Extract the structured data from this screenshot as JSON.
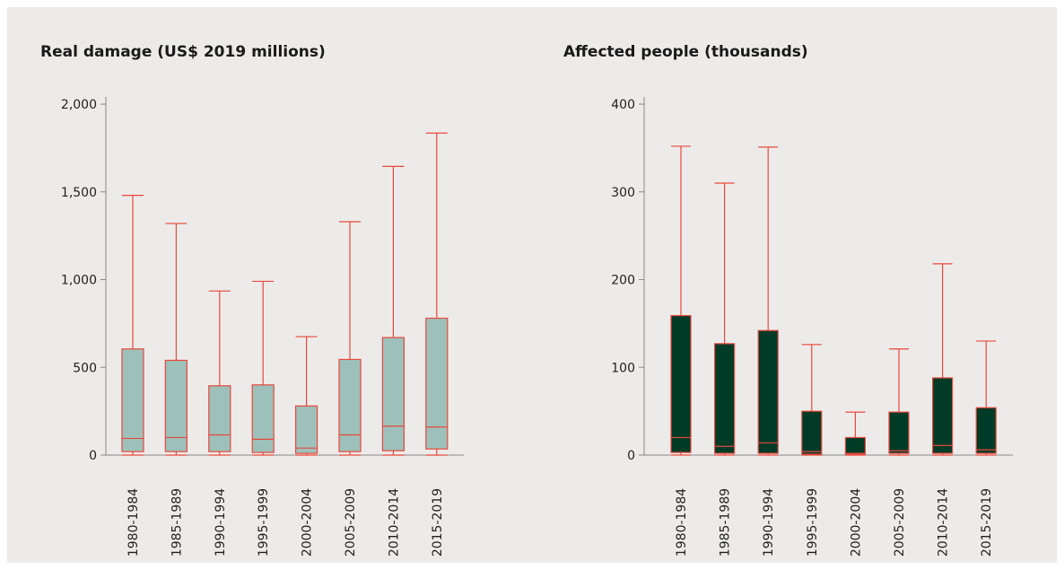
{
  "colors": {
    "background": "#edebe9",
    "whisker": "#e8483c",
    "box_left": "#9dc1ba",
    "box_right": "#003b28",
    "axis": "#888888"
  },
  "chart_data": [
    {
      "type": "box",
      "title": "Real damage (US$ 2019 millions)",
      "ylim": [
        0,
        2000
      ],
      "yticks": [
        0,
        500,
        1000,
        1500,
        2000
      ],
      "ytick_labels": [
        "0",
        "500",
        "1,000",
        "1,500",
        "2,000"
      ],
      "categories": [
        "1980-1984",
        "1985-1989",
        "1990-1994",
        "1995-1999",
        "2000-2004",
        "2005-2009",
        "2010-2014",
        "2015-2019"
      ],
      "min": [
        0,
        0,
        0,
        0,
        0,
        0,
        0,
        0
      ],
      "q1": [
        20,
        20,
        20,
        15,
        10,
        20,
        25,
        35
      ],
      "median": [
        95,
        100,
        115,
        90,
        40,
        115,
        165,
        160
      ],
      "q3": [
        605,
        540,
        395,
        400,
        280,
        545,
        670,
        780
      ],
      "max": [
        1480,
        1320,
        935,
        990,
        675,
        1330,
        1645,
        1835
      ]
    },
    {
      "type": "box",
      "title": "Affected people (thousands)",
      "ylim": [
        0,
        400
      ],
      "yticks": [
        0,
        100,
        200,
        300,
        400
      ],
      "ytick_labels": [
        "0",
        "100",
        "200",
        "300",
        "400"
      ],
      "categories": [
        "1980-1984",
        "1985-1989",
        "1990-1994",
        "1995-1999",
        "2000-2004",
        "2005-2009",
        "2010-2014",
        "2015-2019"
      ],
      "min": [
        0,
        0,
        0,
        0,
        0,
        0,
        0,
        0
      ],
      "q1": [
        3,
        2,
        2,
        1,
        1,
        2,
        2,
        2
      ],
      "median": [
        20,
        10,
        14,
        4,
        2,
        5,
        11,
        6
      ],
      "q3": [
        159,
        127,
        142,
        50,
        20,
        49,
        88,
        54
      ],
      "max": [
        352,
        310,
        351,
        126,
        49,
        121,
        218,
        130
      ]
    }
  ]
}
